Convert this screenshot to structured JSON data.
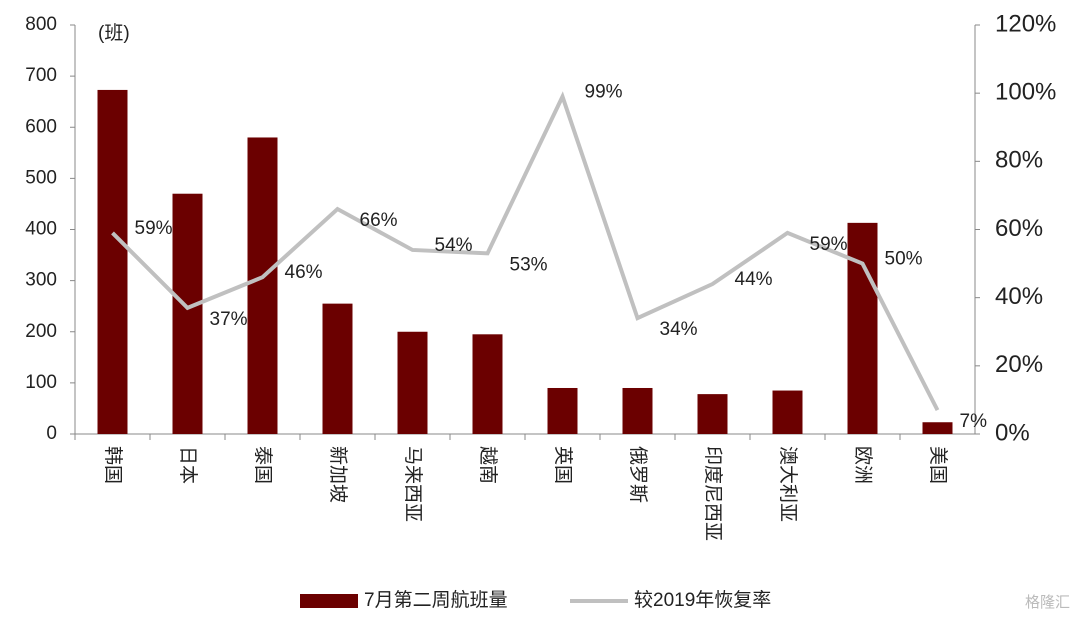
{
  "chart_data": {
    "type": "bar-line",
    "y_axis_label": "(班)",
    "categories": [
      "韩国",
      "日本",
      "泰国",
      "新加坡",
      "马来西亚",
      "越南",
      "英国",
      "俄罗斯",
      "印度尼西亚",
      "澳大利亚",
      "欧洲",
      "美国"
    ],
    "series": [
      {
        "name": "7月第二周航班量",
        "type": "bar",
        "color": "#6b0000",
        "values": [
          673,
          470,
          580,
          255,
          200,
          195,
          90,
          90,
          78,
          85,
          413,
          23
        ]
      },
      {
        "name": "较2019年恢复率",
        "type": "line",
        "axis": "y2",
        "color": "#c0c0c0",
        "values": [
          59,
          37,
          46,
          66,
          54,
          53,
          99,
          34,
          44,
          59,
          50,
          7
        ],
        "value_labels": [
          "59%",
          "37%",
          "46%",
          "66%",
          "54%",
          "53%",
          "99%",
          "34%",
          "44%",
          "59%",
          "50%",
          "7%"
        ]
      }
    ],
    "ylim": [
      0,
      800
    ],
    "yticks": [
      0,
      100,
      200,
      300,
      400,
      500,
      600,
      700,
      800
    ],
    "y2lim": [
      0,
      120
    ],
    "y2ticks": [
      {
        "value": 0,
        "label": "0%"
      },
      {
        "value": 20,
        "label": "20%"
      },
      {
        "value": 40,
        "label": "40%"
      },
      {
        "value": 60,
        "label": "60%"
      },
      {
        "value": 80,
        "label": "80%"
      },
      {
        "value": 100,
        "label": "100%"
      },
      {
        "value": 120,
        "label": "120%"
      }
    ],
    "legend": "bottom",
    "watermark": "格隆汇"
  }
}
